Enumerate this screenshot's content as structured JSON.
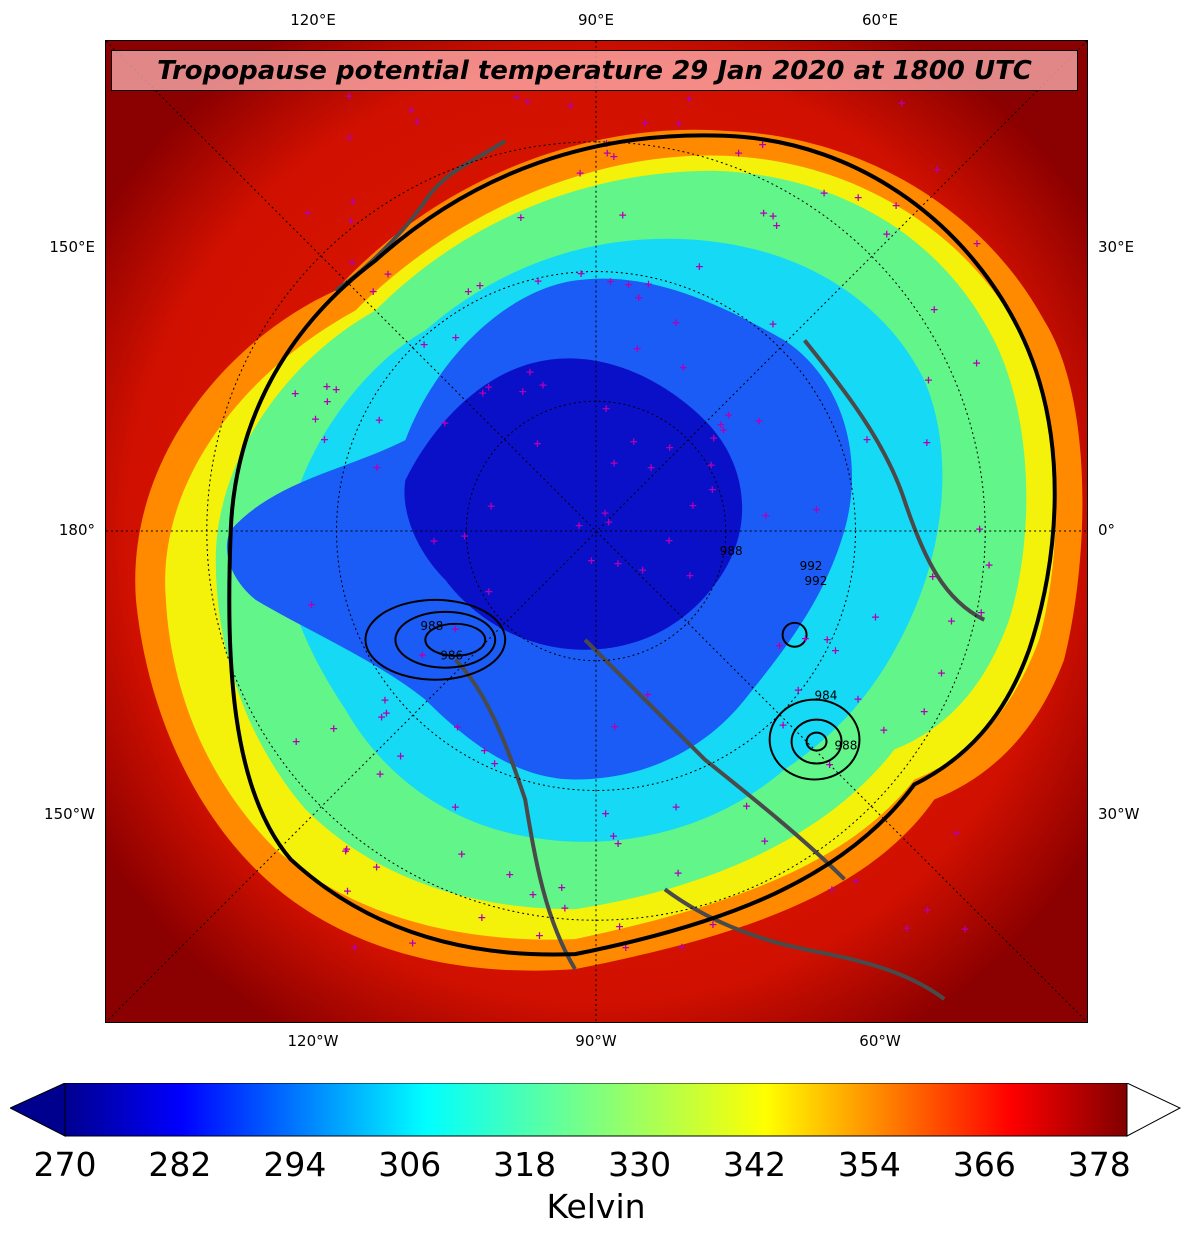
{
  "title": "Tropopause potential temperature 29 Jan 2020 at 1800 UTC",
  "lon_labels": {
    "top": [
      "120°E",
      "90°E",
      "60°E"
    ],
    "bottom": [
      "120°W",
      "90°W",
      "60°W"
    ],
    "left": [
      "150°E",
      "180°",
      "150°W"
    ],
    "right": [
      "30°E",
      "0°",
      "30°W"
    ]
  },
  "colorbar": {
    "ticks": [
      "270",
      "282",
      "294",
      "306",
      "318",
      "330",
      "342",
      "354",
      "366",
      "378"
    ],
    "label": "Kelvin",
    "colormap": "jet",
    "min": 270,
    "max": 381,
    "extend_min": "triangle",
    "extend_max": "white-triangle"
  },
  "contour_labels": [
    "988",
    "992",
    "992",
    "988",
    "986",
    "984",
    "988"
  ],
  "colors": {
    "ocean_outer": "#8b0000",
    "red": "#e81a00",
    "orange": "#ff8a00",
    "yellow": "#f4f20a",
    "green": "#62f58a",
    "cyan": "#16d9f5",
    "blue": "#1a5cf5",
    "deep_blue": "#0a10c8",
    "coastline": "#4a4a4a",
    "station_marker": "#b400b4"
  }
}
